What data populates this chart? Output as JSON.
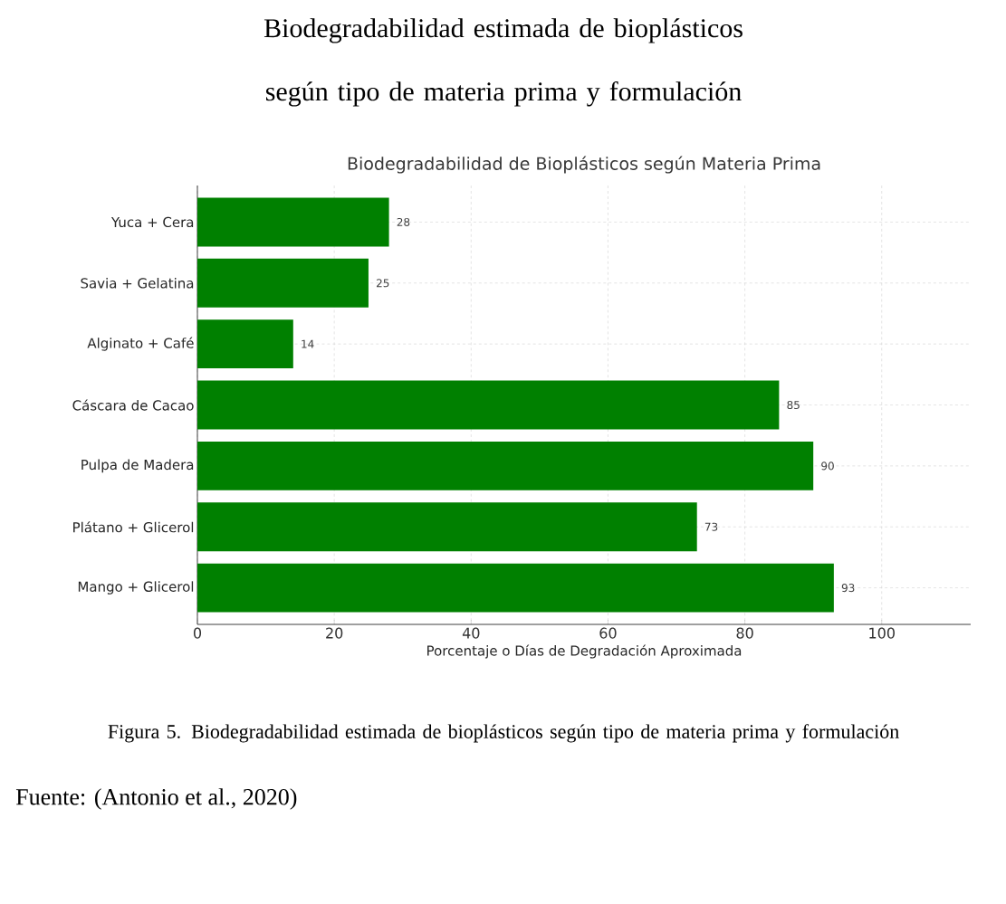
{
  "chart_data": {
    "type": "bar",
    "orientation": "horizontal",
    "title": "Biodegradabilidad estimada de bioplásticos según tipo de materia prima y formulación",
    "subtitle": "Biodegradabilidad de Bioplásticos según Materia Prima",
    "xlabel": "Porcentaje o Días de Degradación Aproximada",
    "categories": [
      "Yuca + Cera",
      "Savia + Gelatina",
      "Alginato + Café",
      "Cáscara de Cacao",
      "Pulpa de Madera",
      "Plátano + Glicerol",
      "Mango + Glicerol"
    ],
    "values": [
      28,
      25,
      14,
      85,
      90,
      73,
      93
    ],
    "color": "#008000",
    "xlim": [
      0,
      113
    ],
    "xticks": [
      0,
      20,
      40,
      60,
      80,
      100
    ],
    "grid": true,
    "data_labels": true,
    "annotations": [
      "Figura 5. Biodegradabilidad estimada de bioplásticos según tipo de materia prima y formulación",
      "Fuente: (Antonio et al., 2020)"
    ]
  }
}
